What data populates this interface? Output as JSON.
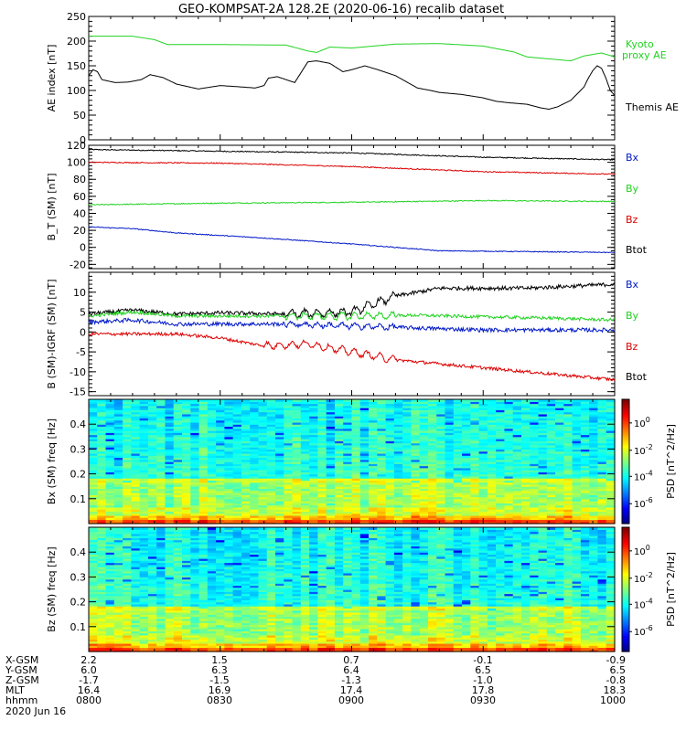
{
  "title": "GEO-KOMPSAT-2A 128.2E (2020-06-16) recalib dataset",
  "colors": {
    "black": "#000000",
    "green": "#21d321",
    "red": "#dd0000",
    "blue": "#0018c8"
  },
  "chart_data": [
    {
      "type": "line",
      "ylabel": "AE index [nT]",
      "ylim": [
        0,
        250
      ],
      "yticks": [
        0,
        50,
        100,
        150,
        200,
        250
      ],
      "xlim": [
        0,
        120
      ],
      "series": [
        {
          "name": "Kyoto proxy AE",
          "color": "green",
          "x": [
            0,
            5,
            10,
            15,
            18,
            22,
            30,
            45,
            50,
            52,
            55,
            60,
            70,
            80,
            90,
            97,
            100,
            110,
            113,
            117,
            120
          ],
          "y": [
            210,
            210,
            210,
            203,
            193,
            193,
            193,
            192,
            180,
            177,
            188,
            186,
            194,
            195,
            190,
            178,
            168,
            160,
            170,
            176,
            168
          ]
        },
        {
          "name": "Themis AE",
          "color": "black",
          "x": [
            0,
            1,
            2,
            3,
            6,
            9,
            12,
            14,
            17,
            20,
            25,
            30,
            35,
            38,
            40,
            41,
            43,
            47,
            50,
            52,
            55,
            58,
            60,
            63,
            66,
            70,
            72,
            75,
            78,
            80,
            85,
            90,
            93,
            96,
            100,
            103,
            105,
            107,
            110,
            113,
            114,
            115,
            116,
            117,
            118,
            119,
            120
          ],
          "y": [
            130,
            142,
            138,
            122,
            116,
            117,
            122,
            132,
            126,
            113,
            103,
            110,
            107,
            105,
            110,
            125,
            128,
            116,
            158,
            160,
            155,
            138,
            142,
            150,
            142,
            130,
            120,
            105,
            100,
            96,
            92,
            85,
            78,
            75,
            72,
            65,
            62,
            67,
            80,
            107,
            125,
            140,
            150,
            145,
            125,
            100,
            90
          ]
        }
      ]
    },
    {
      "type": "line",
      "ylabel": "B_T (SM) [nT]",
      "ylim": [
        -25,
        120
      ],
      "yticks": [
        -20,
        0,
        20,
        40,
        60,
        80,
        100,
        120
      ],
      "xlim": [
        0,
        120
      ],
      "series": [
        {
          "name": "Bx",
          "color": "black",
          "noise": 0.6,
          "x": [
            0,
            30,
            60,
            90,
            120
          ],
          "y": [
            115,
            113,
            111,
            106,
            103
          ]
        },
        {
          "name": "By",
          "color": "green",
          "noise": 0.6,
          "x": [
            0,
            30,
            60,
            90,
            120
          ],
          "y": [
            50,
            52,
            53,
            55,
            54
          ]
        },
        {
          "name": "Bz",
          "color": "red",
          "noise": 0.6,
          "x": [
            0,
            30,
            60,
            90,
            120
          ],
          "y": [
            100,
            99,
            95,
            89,
            86
          ]
        },
        {
          "name": "Btot",
          "color": "blue",
          "noise": 0.5,
          "x": [
            0,
            10,
            20,
            40,
            60,
            80,
            100,
            120
          ],
          "y": [
            24,
            22,
            17,
            11,
            4,
            -4,
            -5,
            -6
          ]
        }
      ]
    },
    {
      "type": "line",
      "ylabel": "B (SM)-IGRF (SM) [nT]",
      "ylim": [
        -16,
        15
      ],
      "yticks": [
        -15,
        -10,
        -5,
        0,
        5,
        10
      ],
      "xlim": [
        0,
        120
      ],
      "series": [
        {
          "name": "Bx",
          "color": "black",
          "noise": 0.5,
          "wave": 0.9,
          "wave_region": [
            45,
            70
          ],
          "x": [
            0,
            10,
            20,
            30,
            45,
            60,
            65,
            70,
            80,
            90,
            100,
            110,
            120
          ],
          "y": [
            4.5,
            5.5,
            4.5,
            4.8,
            4.5,
            5,
            7,
            9,
            11,
            11,
            11,
            11.5,
            12
          ]
        },
        {
          "name": "By",
          "color": "green",
          "noise": 0.4,
          "wave": 0.8,
          "wave_region": [
            45,
            70
          ],
          "x": [
            0,
            10,
            20,
            30,
            45,
            60,
            75,
            90,
            105,
            120
          ],
          "y": [
            4,
            5,
            4,
            4,
            4,
            4,
            4.2,
            3.8,
            3.5,
            3
          ]
        },
        {
          "name": "Bz",
          "color": "red",
          "noise": 0.4,
          "wave": 0.8,
          "wave_region": [
            40,
            70
          ],
          "x": [
            0,
            10,
            20,
            30,
            40,
            50,
            60,
            70,
            80,
            90,
            100,
            110,
            120
          ],
          "y": [
            -0.5,
            -0.5,
            -0.5,
            -1.5,
            -3.5,
            -3,
            -5,
            -7,
            -8,
            -9,
            -10,
            -11,
            -12
          ]
        },
        {
          "name": "Btot",
          "color": "blue",
          "noise": 0.5,
          "wave": 0.5,
          "wave_region": [
            45,
            70
          ],
          "x": [
            0,
            10,
            20,
            30,
            45,
            60,
            75,
            90,
            105,
            120
          ],
          "y": [
            2.5,
            3,
            2,
            2,
            2,
            1.5,
            1,
            0.5,
            0.5,
            0.5
          ]
        }
      ]
    },
    {
      "type": "heatmap",
      "ylabel": "Bx (SM) freq [Hz]",
      "ylim": [
        0,
        0.5
      ],
      "yticks": [
        0.1,
        0.2,
        0.3,
        0.4
      ],
      "colorbar_label": "PSD [nT^2/Hz]",
      "colorbar_ticks": [
        "10^0",
        "10^-2",
        "10^-4",
        "10^-6"
      ]
    },
    {
      "type": "heatmap",
      "ylabel": "Bz (SM) freq [Hz]",
      "ylim": [
        0,
        0.5
      ],
      "yticks": [
        0.1,
        0.2,
        0.3,
        0.4
      ],
      "colorbar_label": "PSD [nT^2/Hz]",
      "colorbar_ticks": [
        "10^0",
        "10^-2",
        "10^-4",
        "10^-6"
      ]
    }
  ],
  "x_axis": {
    "rows": [
      {
        "label": "X-GSM",
        "values": [
          "2.2",
          "1.5",
          "0.7",
          "-0.1",
          "-0.9"
        ]
      },
      {
        "label": "Y-GSM",
        "values": [
          "6.0",
          "6.3",
          "6.4",
          "6.5",
          "6.5"
        ]
      },
      {
        "label": "Z-GSM",
        "values": [
          "-1.7",
          "-1.5",
          "-1.3",
          "-1.0",
          "-0.8"
        ]
      },
      {
        "label": "MLT",
        "values": [
          "16.4",
          "16.9",
          "17.4",
          "17.8",
          "18.3"
        ]
      },
      {
        "label": "hhmm",
        "values": [
          "0800",
          "0830",
          "0900",
          "0930",
          "1000"
        ]
      }
    ],
    "date": "2020 Jun 16"
  }
}
